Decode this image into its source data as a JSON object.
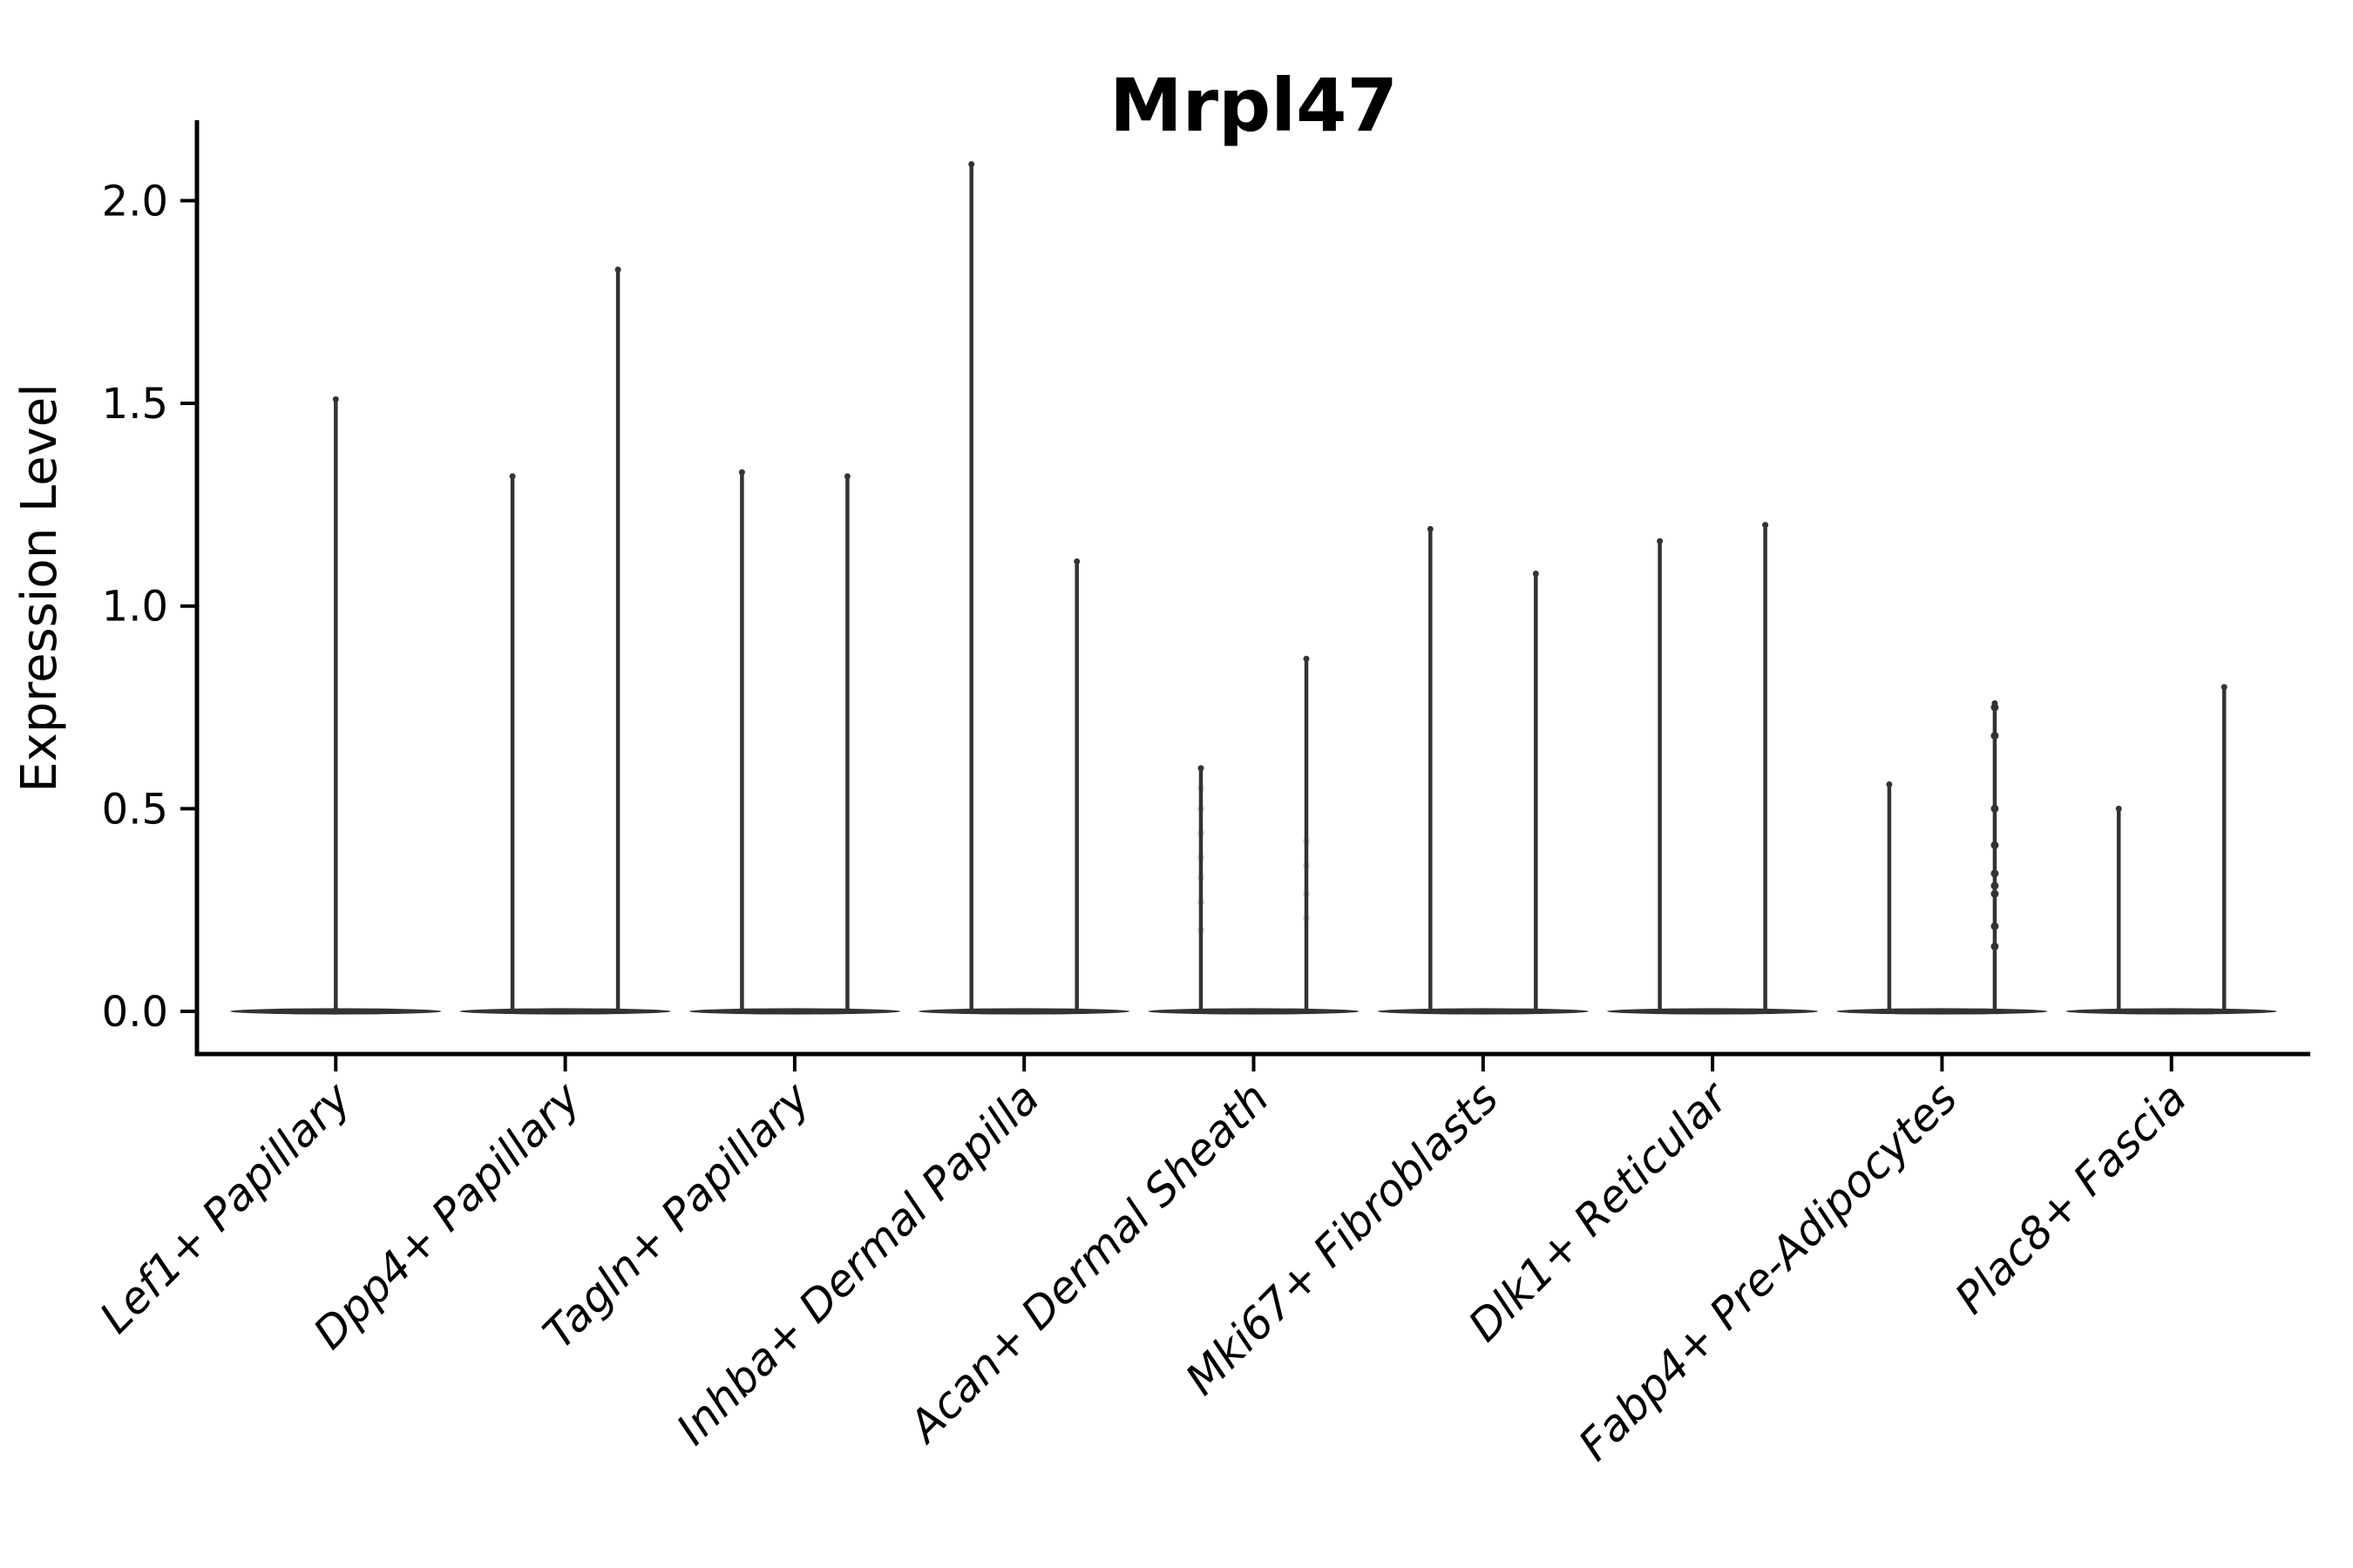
{
  "chart_data": {
    "type": "violin",
    "title": "Mrpl47",
    "ylabel": "Expression Level",
    "xlabel": "",
    "ylim": [
      -0.07,
      2.2
    ],
    "grid": false,
    "legend": null,
    "yticks": [
      {
        "value": 0.0,
        "label": "0.0"
      },
      {
        "value": 0.5,
        "label": "0.5"
      },
      {
        "value": 1.0,
        "label": "1.0"
      },
      {
        "value": 1.5,
        "label": "1.5"
      },
      {
        "value": 2.0,
        "label": "2.0"
      }
    ],
    "categories": [
      {
        "label": "Lef1+ Papillary",
        "spikes": [
          {
            "pos": "center",
            "max": 1.51
          }
        ]
      },
      {
        "label": "Dpp4+ Papillary",
        "spikes": [
          {
            "pos": "left",
            "max": 1.32
          },
          {
            "pos": "right",
            "max": 1.83
          }
        ]
      },
      {
        "label": "Tagln+ Papillary",
        "spikes": [
          {
            "pos": "left",
            "max": 1.33
          },
          {
            "pos": "right",
            "max": 1.32
          }
        ]
      },
      {
        "label": "Inhba+ Dermal Papilla",
        "spikes": [
          {
            "pos": "left",
            "max": 2.09
          },
          {
            "pos": "right",
            "max": 1.11
          }
        ]
      },
      {
        "label": "Acan+ Dermal Sheath",
        "spikes": [
          {
            "pos": "left",
            "max": 0.6,
            "faint_points": [
              0.55,
              0.5,
              0.44,
              0.38,
              0.33,
              0.27,
              0.2
            ]
          },
          {
            "pos": "right",
            "max": 0.87,
            "faint_points": [
              0.42,
              0.36,
              0.29,
              0.23
            ]
          }
        ]
      },
      {
        "label": "Mki67+ Fibroblasts",
        "spikes": [
          {
            "pos": "left",
            "max": 1.19
          },
          {
            "pos": "right",
            "max": 1.08
          }
        ]
      },
      {
        "label": "Dlk1+ Reticular",
        "spikes": [
          {
            "pos": "left",
            "max": 1.16
          },
          {
            "pos": "right",
            "max": 1.2
          }
        ]
      },
      {
        "label": "Fabp4+ Pre-Adipocytes",
        "spikes": [
          {
            "pos": "left",
            "max": 0.56
          },
          {
            "pos": "right",
            "max": 0.76,
            "points": [
              0.75,
              0.68,
              0.5,
              0.41,
              0.34,
              0.31,
              0.29,
              0.21,
              0.16
            ]
          }
        ]
      },
      {
        "label": "Plac8+ Fascia",
        "spikes": [
          {
            "pos": "left",
            "max": 0.5
          },
          {
            "pos": "right",
            "max": 0.8
          }
        ]
      }
    ],
    "colors": {
      "violin": "#333333",
      "axis": "#000000",
      "text": "#000000",
      "background": "#ffffff"
    }
  }
}
